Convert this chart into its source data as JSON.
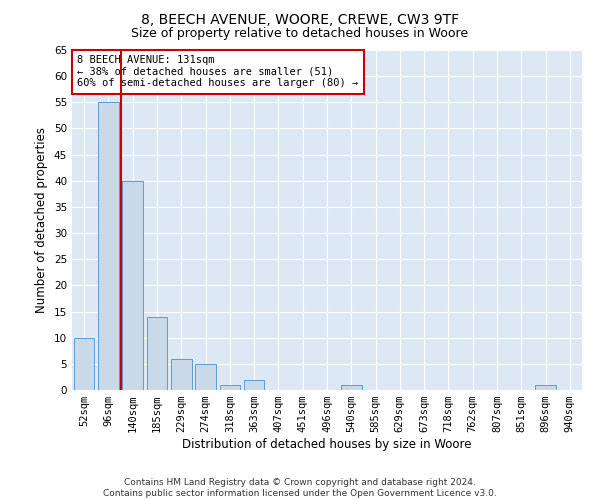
{
  "title1": "8, BEECH AVENUE, WOORE, CREWE, CW3 9TF",
  "title2": "Size of property relative to detached houses in Woore",
  "xlabel": "Distribution of detached houses by size in Woore",
  "ylabel": "Number of detached properties",
  "bar_labels": [
    "52sqm",
    "96sqm",
    "140sqm",
    "185sqm",
    "229sqm",
    "274sqm",
    "318sqm",
    "363sqm",
    "407sqm",
    "451sqm",
    "496sqm",
    "540sqm",
    "585sqm",
    "629sqm",
    "673sqm",
    "718sqm",
    "762sqm",
    "807sqm",
    "851sqm",
    "896sqm",
    "940sqm"
  ],
  "bar_values": [
    10,
    55,
    40,
    14,
    6,
    5,
    1,
    2,
    0,
    0,
    0,
    1,
    0,
    0,
    0,
    0,
    0,
    0,
    0,
    1,
    0
  ],
  "bar_color": "#c9d9e8",
  "bar_edgecolor": "#5b9bd5",
  "annotation_text": "8 BEECH AVENUE: 131sqm\n← 38% of detached houses are smaller (51)\n60% of semi-detached houses are larger (80) →",
  "annotation_box_color": "#ffffff",
  "annotation_box_edgecolor": "#cc0000",
  "vline_color": "#cc0000",
  "vline_pos": 1.5,
  "ylim": [
    0,
    65
  ],
  "yticks": [
    0,
    5,
    10,
    15,
    20,
    25,
    30,
    35,
    40,
    45,
    50,
    55,
    60,
    65
  ],
  "plot_background": "#dce9f5",
  "footer": "Contains HM Land Registry data © Crown copyright and database right 2024.\nContains public sector information licensed under the Open Government Licence v3.0.",
  "title1_fontsize": 10,
  "title2_fontsize": 9,
  "xlabel_fontsize": 8.5,
  "ylabel_fontsize": 8.5,
  "footer_fontsize": 6.5,
  "tick_fontsize": 7.5,
  "annotation_fontsize": 7.5
}
